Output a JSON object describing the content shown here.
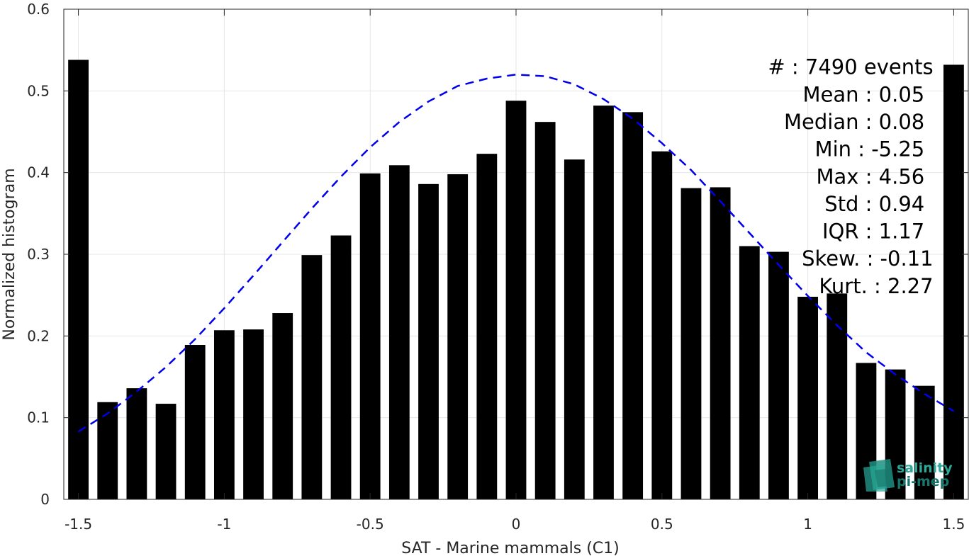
{
  "chart_data": {
    "type": "bar",
    "xlabel": "SAT - Marine mammals (C1)",
    "ylabel": "Normalized histogram",
    "xlim": [
      -1.55,
      1.55
    ],
    "ylim": [
      0,
      0.6
    ],
    "grid": true,
    "xticks": [
      -1.5,
      -1,
      -0.5,
      0,
      0.5,
      1,
      1.5
    ],
    "xtick_labels": [
      "-1.5",
      "-1",
      "-0.5",
      "0",
      "0.5",
      "1",
      "1.5"
    ],
    "yticks": [
      0,
      0.1,
      0.2,
      0.3,
      0.4,
      0.5,
      0.6
    ],
    "ytick_labels": [
      "0",
      "0.1",
      "0.2",
      "0.3",
      "0.4",
      "0.5",
      "0.6"
    ],
    "bar_color": "#000000",
    "bars": {
      "x": [
        -1.5,
        -1.4,
        -1.3,
        -1.2,
        -1.1,
        -1.0,
        -0.9,
        -0.8,
        -0.7,
        -0.6,
        -0.5,
        -0.4,
        -0.3,
        -0.2,
        -0.1,
        0.0,
        0.1,
        0.2,
        0.3,
        0.4,
        0.5,
        0.6,
        0.7,
        0.8,
        0.9,
        1.0,
        1.1,
        1.2,
        1.3,
        1.4,
        1.5
      ],
      "values": [
        0.538,
        0.119,
        0.136,
        0.117,
        0.189,
        0.207,
        0.208,
        0.228,
        0.299,
        0.323,
        0.399,
        0.409,
        0.386,
        0.398,
        0.423,
        0.488,
        0.462,
        0.416,
        0.482,
        0.474,
        0.426,
        0.381,
        0.382,
        0.31,
        0.303,
        0.248,
        0.252,
        0.167,
        0.159,
        0.139,
        0.532
      ],
      "bar_width": 0.07
    },
    "fit_curve": {
      "style": "dashed",
      "color": "#0000ee",
      "x": [
        -1.5,
        -1.4,
        -1.3,
        -1.2,
        -1.1,
        -1.0,
        -0.9,
        -0.8,
        -0.7,
        -0.6,
        -0.5,
        -0.4,
        -0.3,
        -0.2,
        -0.1,
        0.0,
        0.1,
        0.2,
        0.3,
        0.4,
        0.5,
        0.6,
        0.7,
        0.8,
        0.9,
        1.0,
        1.1,
        1.2,
        1.3,
        1.4,
        1.5
      ],
      "y": [
        0.083,
        0.105,
        0.132,
        0.162,
        0.196,
        0.234,
        0.274,
        0.315,
        0.356,
        0.395,
        0.431,
        0.462,
        0.487,
        0.506,
        0.515,
        0.52,
        0.518,
        0.508,
        0.49,
        0.466,
        0.436,
        0.403,
        0.365,
        0.326,
        0.287,
        0.249,
        0.213,
        0.18,
        0.153,
        0.129,
        0.108
      ]
    },
    "stats": [
      {
        "label": "#  : 7490 events",
        "anchor_x": 1.43
      },
      {
        "label": "Mean : 0.05",
        "anchor_x": 1.4
      },
      {
        "label": "Median : 0.08",
        "anchor_x": 1.4
      },
      {
        "label": "Min : -5.25",
        "anchor_x": 1.4
      },
      {
        "label": "Max : 4.56",
        "anchor_x": 1.4
      },
      {
        "label": "Std : 0.94",
        "anchor_x": 1.4
      },
      {
        "label": "IQR : 1.17",
        "anchor_x": 1.4
      },
      {
        "label": "Skew. : -0.11",
        "anchor_x": 1.43
      },
      {
        "label": "Kurt. : 2.27",
        "anchor_x": 1.43
      }
    ],
    "stats_top_y": 0.53,
    "stats_step_y": 0.0335
  },
  "logo": {
    "line1": "salinity",
    "line2": "pi-mep",
    "color": "#2aa898"
  }
}
